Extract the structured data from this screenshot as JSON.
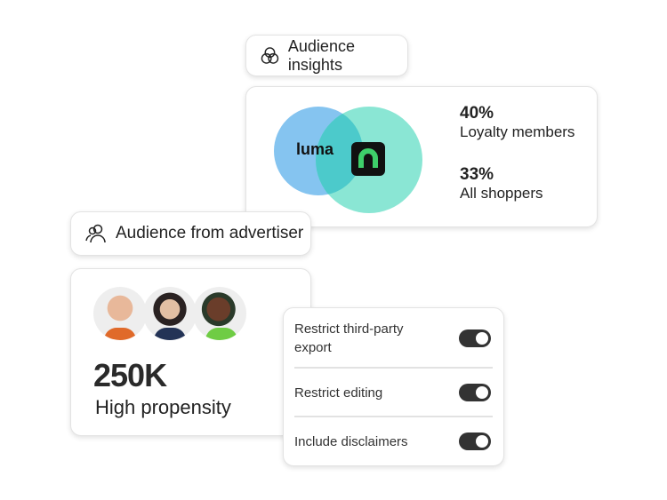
{
  "insights_pill": {
    "label": "Audience insights",
    "icon": "venn-icon"
  },
  "insights_card": {
    "brand_a": "luma",
    "brand_b": "n",
    "colors": {
      "circle_a": "#7fbfef",
      "circle_b": "#7de3cf",
      "overlap": "#4ecbcb",
      "logo_green": "#3ecf6a"
    },
    "stats": [
      {
        "value": "40%",
        "label": "Loyalty members"
      },
      {
        "value": "33%",
        "label": "All shoppers"
      }
    ]
  },
  "advertiser_pill": {
    "label": "Audience from advertiser",
    "icon": "users-icon"
  },
  "audience_card": {
    "count": "250K",
    "label": "High propensity"
  },
  "settings": {
    "items": [
      {
        "label": "Restrict third-party export",
        "on": true
      },
      {
        "label": "Restrict editing",
        "on": true
      },
      {
        "label": "Include disclaimers",
        "on": true
      }
    ]
  }
}
